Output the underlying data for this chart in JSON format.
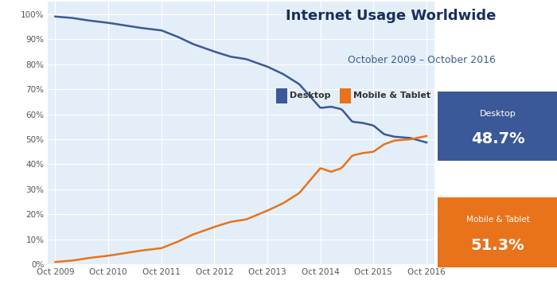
{
  "title": "Internet Usage Worldwide",
  "subtitle": "October 2009 – October 2016",
  "legend_labels": [
    "Desktop",
    "Mobile & Tablet"
  ],
  "desktop_color": "#3b5998",
  "mobile_color": "#e8731a",
  "plot_bg": "#e4eef8",
  "white": "#ffffff",
  "header_bg": "#f0f4f8",
  "x_labels": [
    "Oct 2009",
    "Oct 2010",
    "Oct 2011",
    "Oct 2012",
    "Oct 2013",
    "Oct 2014",
    "Oct 2015",
    "Oct 2016"
  ],
  "yticks": [
    0,
    10,
    20,
    30,
    40,
    50,
    60,
    70,
    80,
    90,
    100
  ],
  "desktop_box_color": "#3b5998",
  "mobile_box_color": "#e8731a",
  "title_color": "#1a2f5e",
  "subtitle_color": "#3a6090",
  "tick_color": "#555555",
  "desktop_ctrl_x": [
    0,
    0.3,
    0.6,
    1.0,
    1.3,
    1.6,
    2.0,
    2.3,
    2.6,
    3.0,
    3.3,
    3.6,
    4.0,
    4.3,
    4.6,
    5.0,
    5.2,
    5.4,
    5.6,
    5.8,
    6.0,
    6.2,
    6.4,
    6.7,
    7.0
  ],
  "desktop_ctrl_y": [
    99.0,
    98.5,
    97.5,
    96.5,
    95.5,
    94.5,
    93.5,
    91.0,
    88.0,
    85.0,
    83.0,
    82.0,
    79.0,
    76.0,
    72.0,
    62.5,
    63.0,
    62.0,
    57.0,
    56.5,
    55.5,
    52.0,
    51.0,
    50.5,
    48.7
  ],
  "mobile_ctrl_x": [
    0,
    0.3,
    0.6,
    1.0,
    1.3,
    1.6,
    2.0,
    2.3,
    2.6,
    3.0,
    3.3,
    3.6,
    4.0,
    4.3,
    4.6,
    5.0,
    5.2,
    5.4,
    5.6,
    5.8,
    6.0,
    6.2,
    6.4,
    6.7,
    7.0
  ],
  "mobile_ctrl_y": [
    1.0,
    1.5,
    2.5,
    3.5,
    4.5,
    5.5,
    6.5,
    9.0,
    12.0,
    15.0,
    17.0,
    18.0,
    21.5,
    24.5,
    28.5,
    38.5,
    37.0,
    38.5,
    43.5,
    44.5,
    45.0,
    48.0,
    49.5,
    50.0,
    51.3
  ]
}
